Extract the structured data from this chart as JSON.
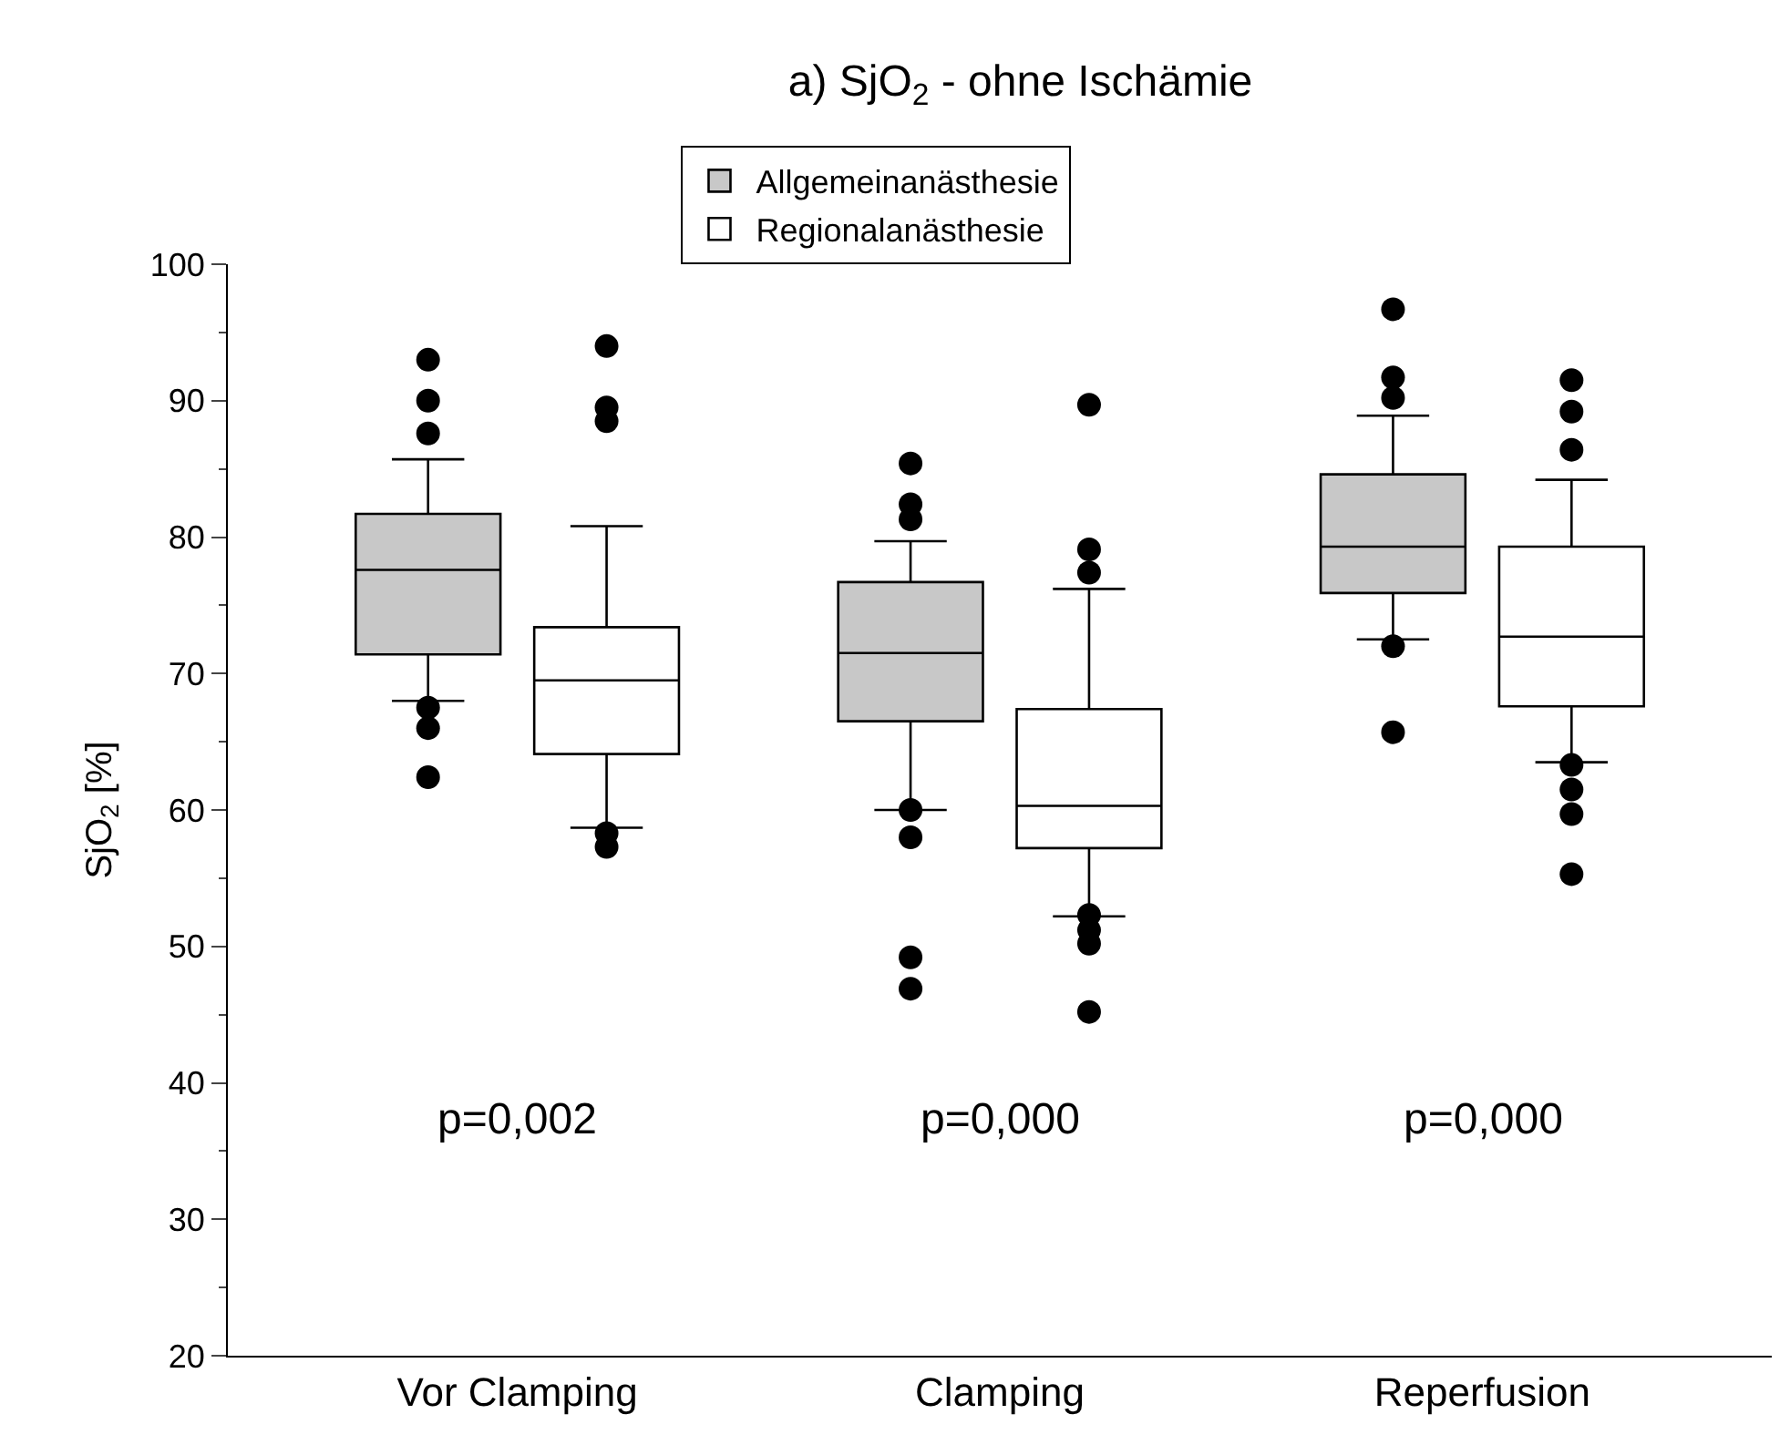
{
  "chart_data": {
    "type": "box",
    "title": "a) SjO$_{2}$ - ohne Ischämie",
    "ylabel": "SjO$_{2}$ [%]",
    "categories": [
      "Vor Clamping",
      "Clamping",
      "Reperfusion"
    ],
    "ylim": [
      20,
      100
    ],
    "yticks": [
      20,
      30,
      40,
      50,
      60,
      70,
      80,
      90,
      100
    ],
    "legend": "top",
    "marker": "circle",
    "series": [
      {
        "name": "Allgemeinanästhesie",
        "color": "#c8c8c8",
        "boxes": [
          {
            "low": 68,
            "q1": 71.4,
            "median": 77.6,
            "q3": 81.7,
            "high": 85.7,
            "outliers": [
              93,
              90,
              87.6,
              67.5,
              66,
              62.4
            ]
          },
          {
            "low": 60,
            "q1": 66.5,
            "median": 71.5,
            "q3": 76.7,
            "high": 79.7,
            "outliers": [
              85.4,
              82.4,
              81.3,
              60,
              58,
              49.2,
              46.9
            ]
          },
          {
            "low": 72.5,
            "q1": 75.9,
            "median": 79.3,
            "q3": 84.6,
            "high": 88.9,
            "outliers": [
              96.7,
              91.7,
              90.2,
              72,
              65.7
            ]
          }
        ]
      },
      {
        "name": "Regionalanästhesie",
        "color": "#ffffff",
        "boxes": [
          {
            "low": 58.7,
            "q1": 64.1,
            "median": 69.5,
            "q3": 73.4,
            "high": 80.8,
            "outliers": [
              94,
              89.5,
              88.5,
              58.3,
              57.3
            ]
          },
          {
            "low": 52.2,
            "q1": 57.2,
            "median": 60.3,
            "q3": 67.4,
            "high": 76.2,
            "outliers": [
              89.7,
              79.1,
              77.4,
              52.3,
              51.2,
              50.2,
              45.2
            ]
          },
          {
            "low": 63.5,
            "q1": 67.6,
            "median": 72.7,
            "q3": 79.3,
            "high": 84.2,
            "outliers": [
              91.5,
              89.2,
              86.4,
              63.3,
              61.5,
              59.7,
              55.3
            ]
          }
        ]
      }
    ],
    "annotations": [
      "p=0,002",
      "p=0,000",
      "p=0,000"
    ]
  }
}
